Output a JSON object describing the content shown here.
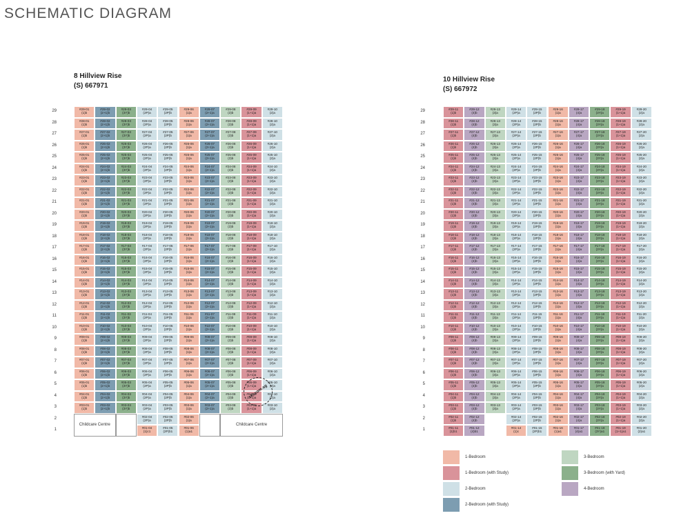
{
  "page_title": "SCHEMATIC DIAGRAM",
  "colors": {
    "1b": "#f1b9a7",
    "1s": "#d9939a",
    "2b": "#cfe0e6",
    "2s": "#7d9db1",
    "3b": "#bfd6c1",
    "3y": "#8bb08b",
    "4b": "#b9a7c2"
  },
  "blocks": [
    {
      "name": "8 Hillview Rise",
      "postal": "(S) 667971",
      "floors": [
        "29",
        "28",
        "27",
        "26",
        "25",
        "24",
        "23",
        "22",
        "21",
        "20",
        "19",
        "18",
        "17",
        "16",
        "15",
        "14",
        "13",
        "12",
        "11",
        "10",
        "9",
        "8",
        "7",
        "6",
        "5",
        "4",
        "3",
        "2",
        "1"
      ],
      "columns": [
        {
          "unit": "01",
          "type": "1b",
          "label": "(1)b"
        },
        {
          "unit": "02",
          "type": "2s",
          "label": "(2+1)b"
        },
        {
          "unit": "03",
          "type": "3y",
          "label": "(3Y)b"
        },
        {
          "unit": "04",
          "type": "2b",
          "label": "(2P)a"
        },
        {
          "unit": "05",
          "type": "2b",
          "label": "(2P)b"
        },
        {
          "unit": "06",
          "type": "1b",
          "label": "(1)a"
        },
        {
          "unit": "07",
          "type": "2s",
          "label": "(2+1)a"
        },
        {
          "unit": "08",
          "type": "3b",
          "label": "(3)b"
        },
        {
          "unit": "09",
          "type": "1s",
          "label": "(1+1)a"
        },
        {
          "unit": "10",
          "type": "2b",
          "label": "(2)a"
        }
      ],
      "special": {
        "childcare_label": "Childcare Centre",
        "floor2": [
          {
            "unit": "#02-04",
            "label": "(2P)a",
            "type": "2b"
          },
          {
            "unit": "#02-05",
            "label": "(2P)b",
            "type": "2b"
          },
          {
            "unit": "#02-06",
            "label": "(1)a",
            "type": "1b"
          }
        ],
        "floor1": [
          {
            "unit": "#01-04",
            "label": "(1)c1",
            "type": "1b"
          },
          {
            "unit": "#01-05",
            "label": "(2P)b1",
            "type": "2b"
          },
          {
            "unit": "#01-06",
            "label": "(1)a1",
            "type": "1b"
          }
        ]
      }
    },
    {
      "name": "10 Hillview Rise",
      "postal": "(S) 667972",
      "floors": [
        "29",
        "28",
        "27",
        "26",
        "25",
        "24",
        "23",
        "22",
        "21",
        "20",
        "19",
        "18",
        "17",
        "16",
        "15",
        "14",
        "13",
        "12",
        "11",
        "10",
        "9",
        "8",
        "7",
        "6",
        "5",
        "4",
        "3",
        "2",
        "1"
      ],
      "columns": [
        {
          "unit": "11",
          "type": "1s",
          "label": "(1)b"
        },
        {
          "unit": "12",
          "type": "4b",
          "label": "(4)b"
        },
        {
          "unit": "13",
          "type": "3b",
          "label": "(3)a"
        },
        {
          "unit": "14",
          "type": "2b",
          "label": "(2P)a"
        },
        {
          "unit": "15",
          "type": "2b",
          "label": "(2P)b"
        },
        {
          "unit": "16",
          "type": "1b",
          "label": "(1)a"
        },
        {
          "unit": "17",
          "type": "4b",
          "label": "(4)a"
        },
        {
          "unit": "18",
          "type": "3y",
          "label": "(3Y)a"
        },
        {
          "unit": "19",
          "type": "1s",
          "label": "(1+1)a"
        },
        {
          "unit": "20",
          "type": "2b",
          "label": "(2)a"
        }
      ],
      "special": {
        "floor2_missing": [
          "13"
        ],
        "floor1": [
          {
            "unit": "#01-11",
            "label": "(1)b1",
            "type": "1s"
          },
          {
            "unit": "#01-12",
            "label": "(4)b1",
            "type": "4b"
          },
          null,
          {
            "unit": "#01-14",
            "label": "(1)c",
            "type": "1b"
          },
          {
            "unit": "#01-15",
            "label": "(2P)b1",
            "type": "2b"
          },
          {
            "unit": "#01-16",
            "label": "(1)a1",
            "type": "1b"
          },
          {
            "unit": "#01-17",
            "label": "(4)a1",
            "type": "4b"
          },
          {
            "unit": "#01-18",
            "label": "(3Y)a1",
            "type": "3y"
          },
          {
            "unit": "#01-19",
            "label": "(1+1)a1",
            "type": "1s"
          },
          {
            "unit": "#01-20",
            "label": "(2)a1",
            "type": "2b"
          }
        ]
      }
    }
  ],
  "legend": [
    {
      "label": "1-Bedroom",
      "type": "1b"
    },
    {
      "label": "1-Bedroom (with Study)",
      "type": "1s"
    },
    {
      "label": "2-Bedroom",
      "type": "2b"
    },
    {
      "label": "2-Bedroom (with Study)",
      "type": "2s"
    },
    {
      "label": "3-Bedroom",
      "type": "3b"
    },
    {
      "label": "3-Bedroom (with Yard)",
      "type": "3y"
    },
    {
      "label": "4-Bedroom",
      "type": "4b"
    }
  ],
  "watermark": "skt.com.sg"
}
